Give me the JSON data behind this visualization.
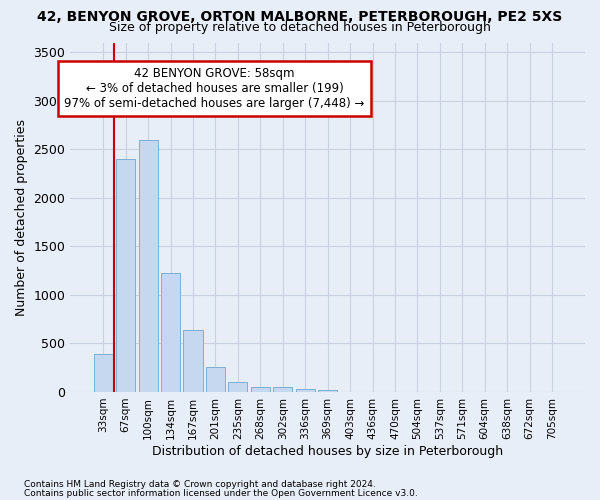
{
  "title_line1": "42, BENYON GROVE, ORTON MALBORNE, PETERBOROUGH, PE2 5XS",
  "title_line2": "Size of property relative to detached houses in Peterborough",
  "xlabel": "Distribution of detached houses by size in Peterborough",
  "ylabel": "Number of detached properties",
  "categories": [
    "33sqm",
    "67sqm",
    "100sqm",
    "134sqm",
    "167sqm",
    "201sqm",
    "235sqm",
    "268sqm",
    "302sqm",
    "336sqm",
    "369sqm",
    "403sqm",
    "436sqm",
    "470sqm",
    "504sqm",
    "537sqm",
    "571sqm",
    "604sqm",
    "638sqm",
    "672sqm",
    "705sqm"
  ],
  "bar_values": [
    390,
    2400,
    2600,
    1230,
    640,
    255,
    100,
    55,
    55,
    30,
    25,
    0,
    0,
    0,
    0,
    0,
    0,
    0,
    0,
    0,
    0
  ],
  "bar_color": "#c5d8f0",
  "bar_edge_color": "#7bafd4",
  "background_color": "#e8eef8",
  "grid_color": "#c8d2e0",
  "annotation_text": "42 BENYON GROVE: 58sqm\n← 3% of detached houses are smaller (199)\n97% of semi-detached houses are larger (7,448) →",
  "annotation_box_facecolor": "#ffffff",
  "annotation_border_color": "#cc0000",
  "vline_color": "#cc0000",
  "ylim": [
    0,
    3600
  ],
  "yticks": [
    0,
    500,
    1000,
    1500,
    2000,
    2500,
    3000,
    3500
  ],
  "footnote1": "Contains HM Land Registry data © Crown copyright and database right 2024.",
  "footnote2": "Contains public sector information licensed under the Open Government Licence v3.0."
}
